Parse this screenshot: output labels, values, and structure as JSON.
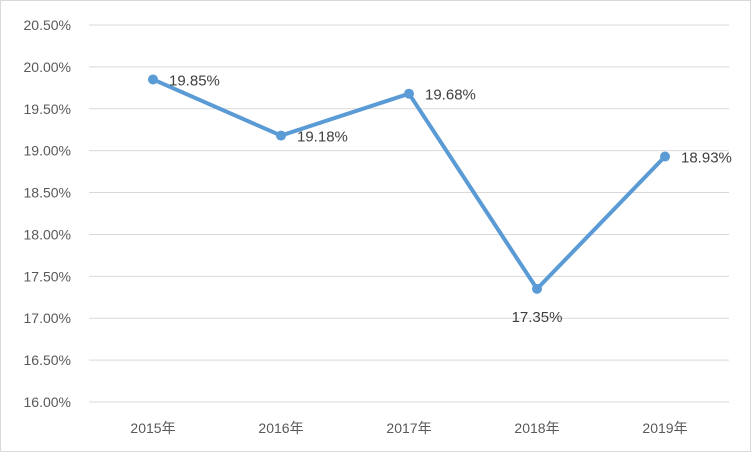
{
  "chart_data": {
    "type": "line",
    "title": "",
    "xlabel": "",
    "ylabel": "",
    "categories": [
      "2015年",
      "2016年",
      "2017年",
      "2018年",
      "2019年"
    ],
    "series": [
      {
        "values": [
          19.85,
          19.18,
          19.68,
          17.35,
          18.93
        ],
        "labels": [
          "19.85%",
          "19.18%",
          "19.68%",
          "17.35%",
          "18.93%"
        ],
        "color": "#5b9bd5"
      }
    ],
    "ylim": [
      16.0,
      20.5
    ],
    "yticks": [
      "16.00%",
      "16.50%",
      "17.00%",
      "17.50%",
      "18.00%",
      "18.50%",
      "19.00%",
      "19.50%",
      "20.00%",
      "20.50%"
    ],
    "grid": true,
    "legend": "none"
  }
}
